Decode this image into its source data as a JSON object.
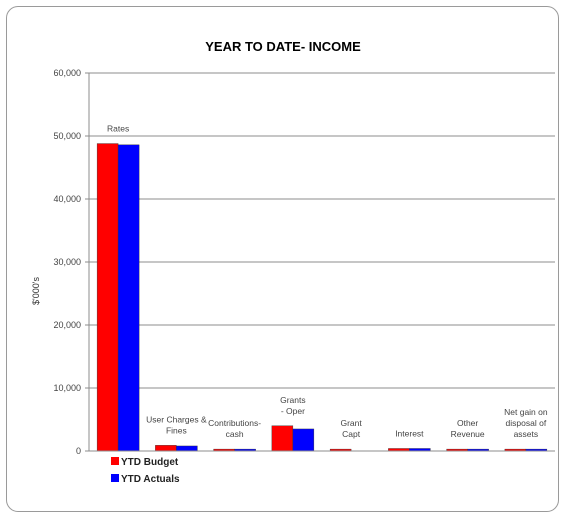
{
  "chart_data": {
    "type": "bar",
    "title": "YEAR TO DATE- INCOME",
    "ylabel": "$'000's",
    "xlabel": "",
    "ylim": [
      0,
      60000
    ],
    "yticks": [
      "0",
      "10,000",
      "20,000",
      "30,000",
      "40,000",
      "50,000",
      "60,000"
    ],
    "grid": true,
    "legend_position": "bottom-left",
    "categories": [
      [
        "Rates"
      ],
      [
        "User Charges &",
        "Fines"
      ],
      [
        "Contributions-",
        "cash"
      ],
      [
        "Grants",
        "- Oper"
      ],
      [
        "Grant",
        "Capt"
      ],
      [
        "Interest"
      ],
      [
        "Other",
        "Revenue"
      ],
      [
        "Net gain on",
        "disposal of",
        "assets"
      ]
    ],
    "series": [
      {
        "name": "YTD Budget",
        "color": "#ff0000",
        "values": [
          48800,
          900,
          300,
          4000,
          300,
          400,
          300,
          300
        ]
      },
      {
        "name": "YTD Actuals",
        "color": "#0000ff",
        "values": [
          48600,
          800,
          300,
          3500,
          0,
          400,
          300,
          300
        ]
      }
    ]
  }
}
